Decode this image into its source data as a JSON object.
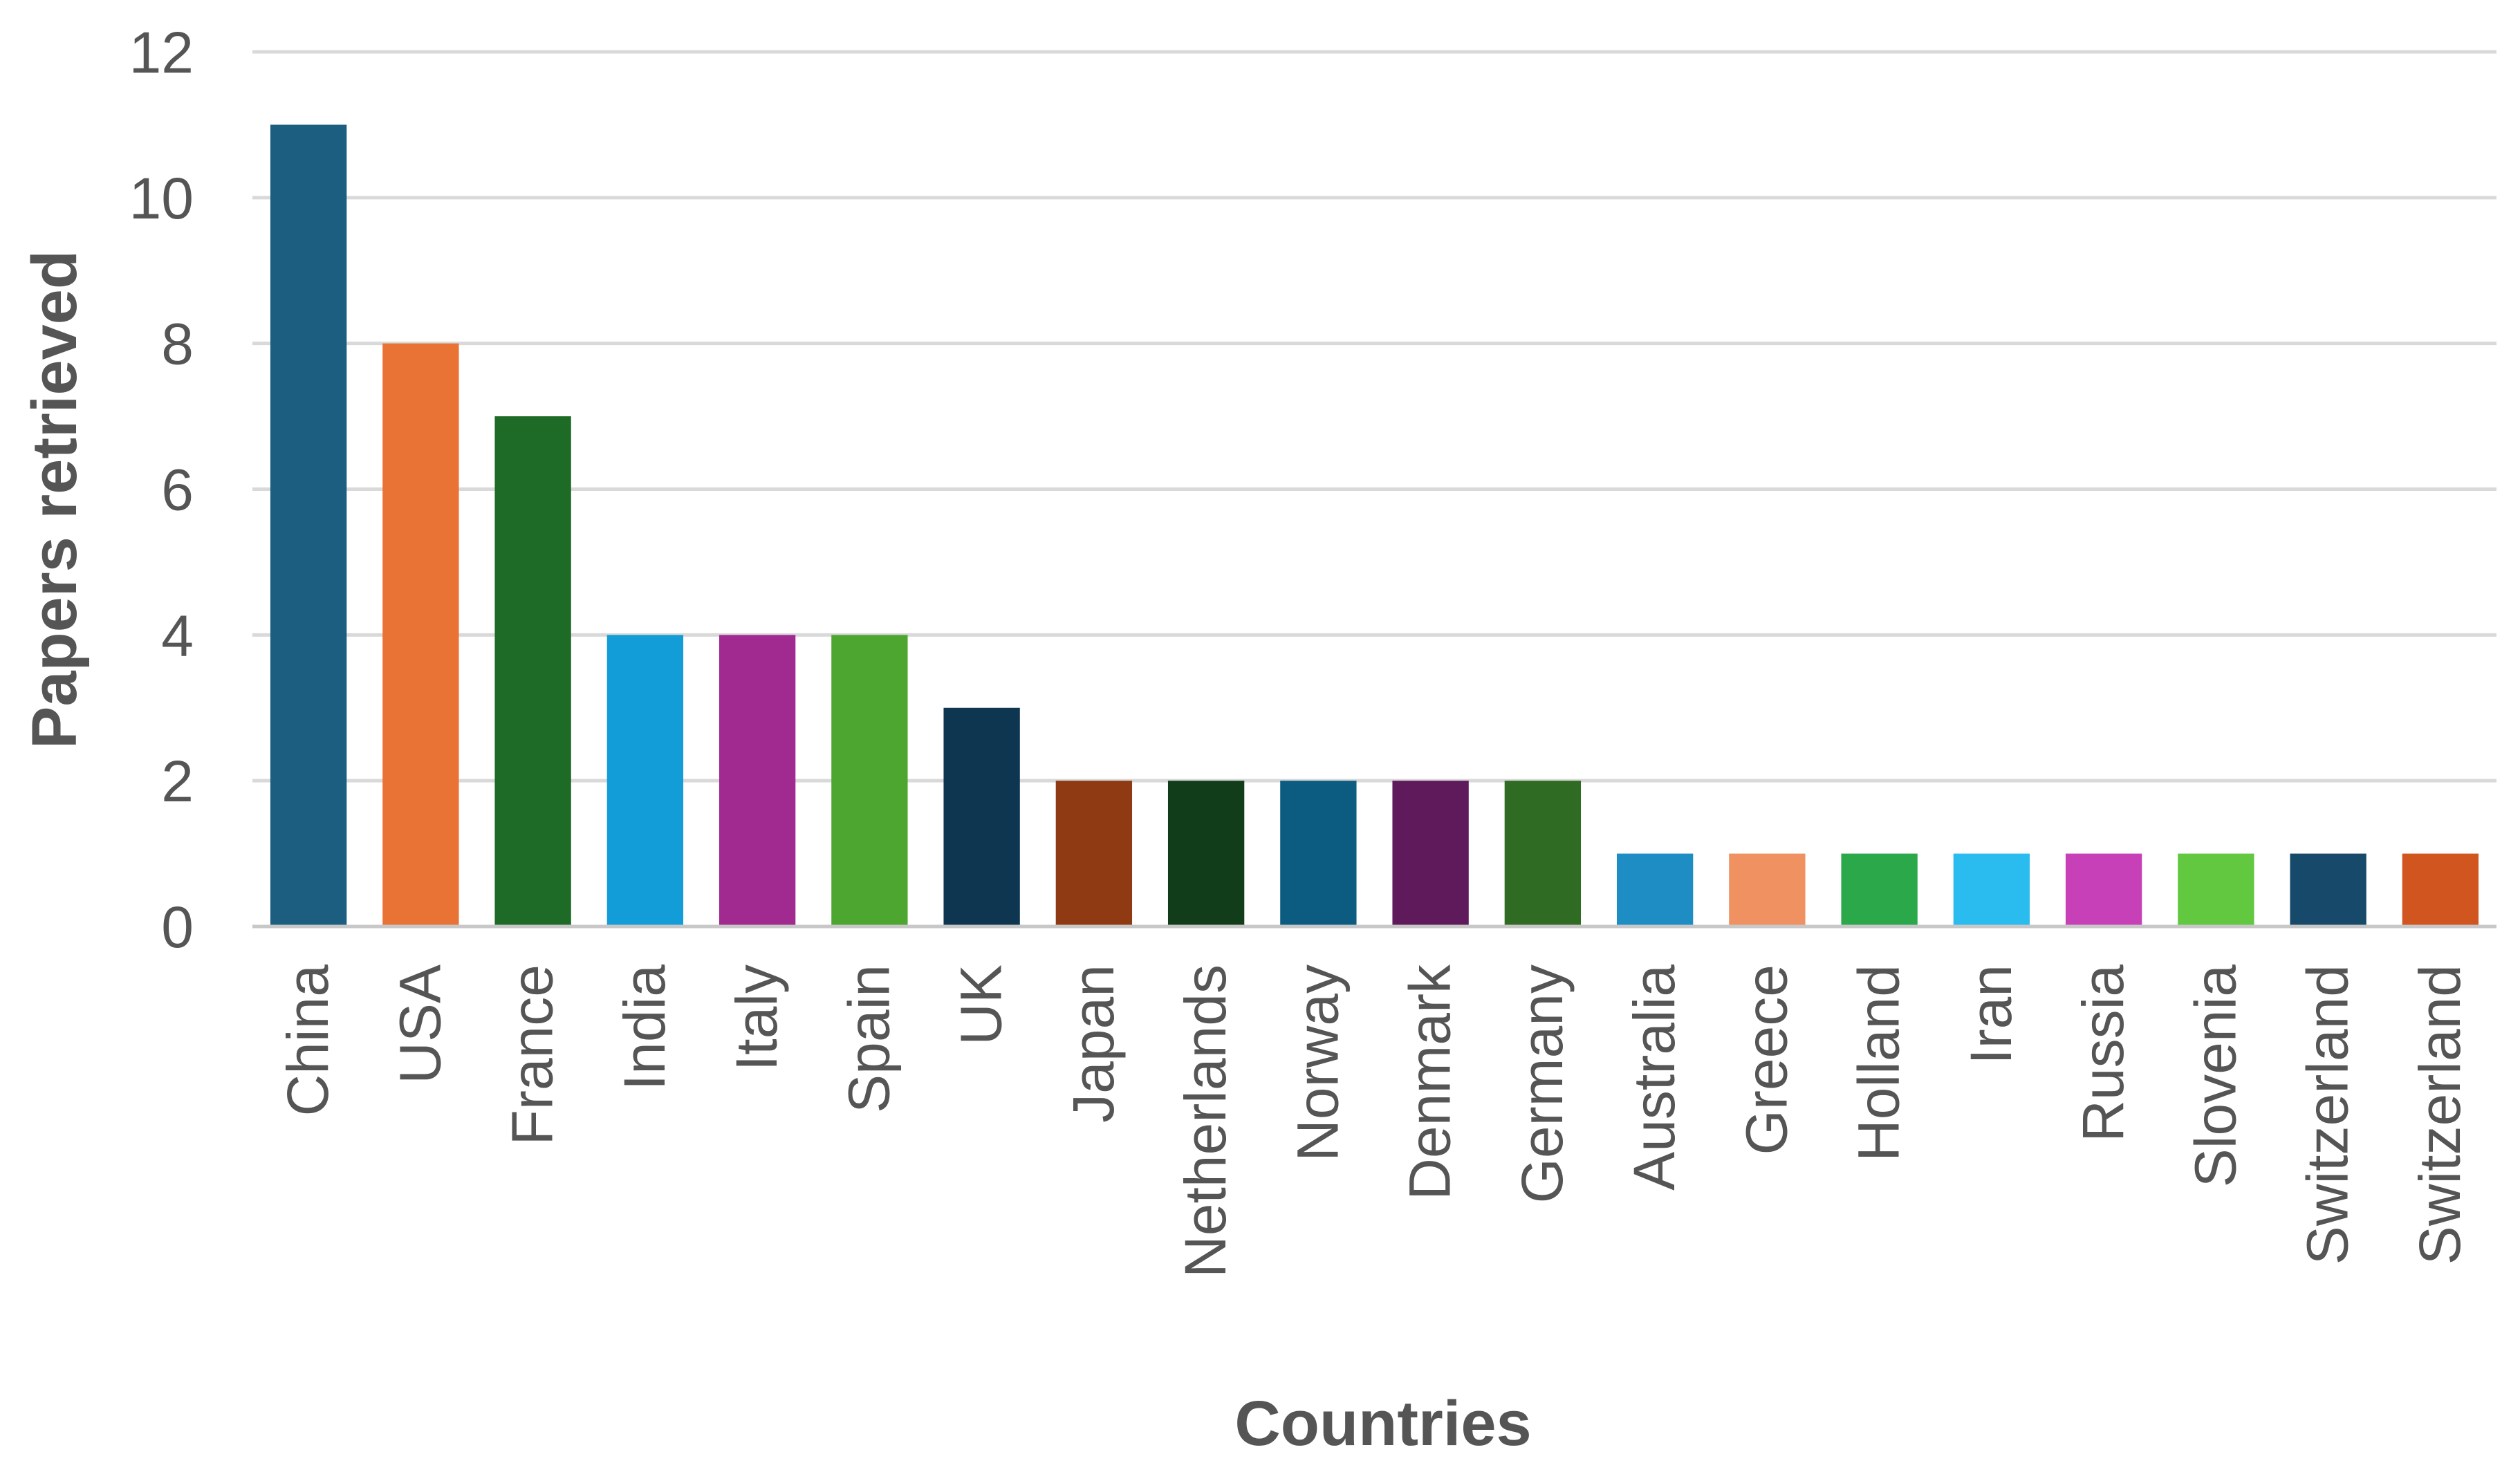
{
  "chart_data": {
    "type": "bar",
    "title": "",
    "xlabel": "Countries",
    "ylabel": "Papers retrieved",
    "ylim": [
      0,
      12
    ],
    "yticks": [
      0,
      2,
      4,
      6,
      8,
      10,
      12
    ],
    "grid": true,
    "legend": "none",
    "categories": [
      "China",
      "USA",
      "France",
      "India",
      "Italy",
      "Spain",
      "UK",
      "Japan",
      "Netherlands",
      "Norway",
      "Denmark",
      "Germany",
      "Australia",
      "Greece",
      "Holland",
      "Iran",
      "Russia",
      "Slovenia",
      "Switzerland",
      "Switzerland"
    ],
    "values": [
      11,
      8,
      7,
      4,
      4,
      4,
      3,
      2,
      2,
      2,
      2,
      2,
      1,
      1,
      1,
      1,
      1,
      1,
      1,
      1
    ],
    "colors": [
      "#1B5E80",
      "#E97334",
      "#1D6B26",
      "#139DD8",
      "#A02A90",
      "#4CA630",
      "#0F3650",
      "#8F3A12",
      "#123D1A",
      "#0C5C82",
      "#5E1A5A",
      "#2F6B22",
      "#1E8DC4",
      "#EF9160",
      "#2AA84A",
      "#2ABCEE",
      "#C840B8",
      "#62C840",
      "#174A6A",
      "#D1551E"
    ]
  }
}
